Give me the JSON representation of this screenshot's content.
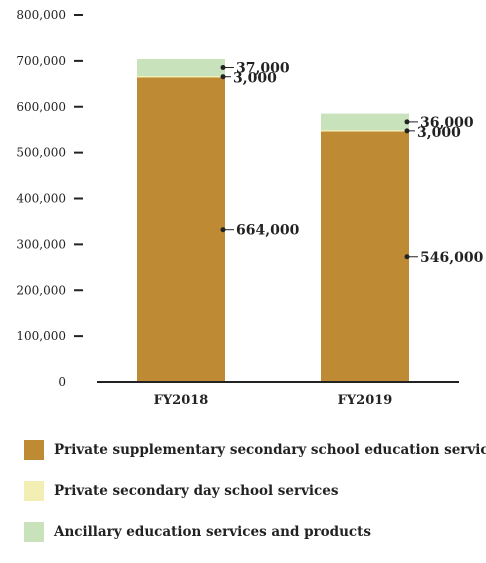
{
  "chart_data": {
    "type": "bar",
    "stacked": true,
    "categories": [
      "FY2018",
      "FY2019"
    ],
    "series": [
      {
        "name": "Private supplementary secondary school education services",
        "color": "#bf8a34",
        "values": [
          664000,
          546000
        ]
      },
      {
        "name": "Private secondary day school services",
        "color": "#f3efb4",
        "values": [
          3000,
          3000
        ]
      },
      {
        "name": "Ancillary education services and products",
        "color": "#c8e2bc",
        "values": [
          37000,
          36000
        ]
      }
    ],
    "data_labels": [
      [
        "664,000",
        "3,000",
        "37,000"
      ],
      [
        "546,000",
        "3,000",
        "36,000"
      ]
    ],
    "yticks": [
      "0",
      "100,000",
      "200,000",
      "300,000",
      "400,000",
      "500,000",
      "600,000",
      "700,000",
      "800,000"
    ],
    "ylim": [
      0,
      800000
    ],
    "legend_position": "bottom",
    "grid": false
  }
}
